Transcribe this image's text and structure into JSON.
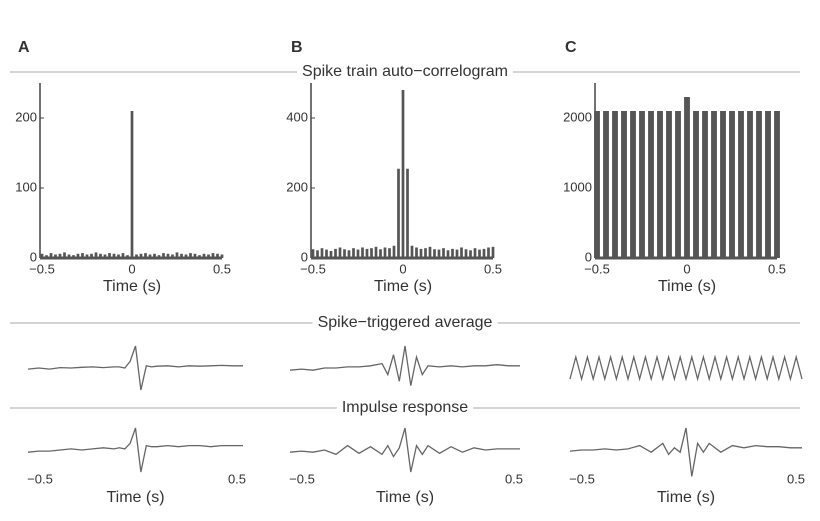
{
  "sections": [
    "Spike train auto−correlogram",
    "Spike−triggered average",
    "Impulse response"
  ],
  "chart_data": [
    {
      "type": "bar",
      "label": "A",
      "xlabel": "Time (s)",
      "color": "#555555",
      "x": [
        -0.5,
        -0.475,
        -0.45,
        -0.425,
        -0.4,
        -0.375,
        -0.35,
        -0.325,
        -0.3,
        -0.275,
        -0.25,
        -0.225,
        -0.2,
        -0.175,
        -0.15,
        -0.125,
        -0.1,
        -0.075,
        -0.05,
        -0.025,
        0,
        0.025,
        0.05,
        0.075,
        0.1,
        0.125,
        0.15,
        0.175,
        0.2,
        0.225,
        0.25,
        0.275,
        0.3,
        0.325,
        0.35,
        0.375,
        0.4,
        0.425,
        0.45,
        0.475,
        0.5
      ],
      "values": [
        6,
        4,
        7,
        5,
        6,
        8,
        5,
        4,
        6,
        7,
        5,
        6,
        8,
        6,
        5,
        7,
        6,
        5,
        7,
        4,
        210,
        5,
        6,
        7,
        5,
        6,
        4,
        7,
        6,
        5,
        8,
        6,
        5,
        7,
        6,
        4,
        6,
        5,
        7,
        6,
        5
      ],
      "xlim": [
        -0.5,
        0.5
      ],
      "xticks": [
        {
          "value": -0.5,
          "label": "−0.5"
        },
        0,
        0.5
      ],
      "ylim": [
        0,
        250
      ],
      "yticks": [
        0,
        100,
        200
      ]
    },
    {
      "type": "bar",
      "label": "B",
      "xlabel": "Time (s)",
      "color": "#555555",
      "x": [
        -0.5,
        -0.475,
        -0.45,
        -0.425,
        -0.4,
        -0.375,
        -0.35,
        -0.325,
        -0.3,
        -0.275,
        -0.25,
        -0.225,
        -0.2,
        -0.175,
        -0.15,
        -0.125,
        -0.1,
        -0.075,
        -0.05,
        -0.025,
        0,
        0.025,
        0.05,
        0.075,
        0.1,
        0.125,
        0.15,
        0.175,
        0.2,
        0.225,
        0.25,
        0.275,
        0.3,
        0.325,
        0.35,
        0.375,
        0.4,
        0.425,
        0.45,
        0.475,
        0.5
      ],
      "values": [
        25,
        22,
        28,
        24,
        20,
        26,
        30,
        25,
        22,
        28,
        24,
        30,
        26,
        28,
        32,
        25,
        30,
        28,
        35,
        255,
        480,
        255,
        35,
        30,
        26,
        28,
        32,
        25,
        24,
        28,
        22,
        26,
        24,
        30,
        25,
        22,
        28,
        24,
        26,
        30,
        32
      ],
      "xlim": [
        -0.5,
        0.5
      ],
      "xticks": [
        {
          "value": -0.5,
          "label": "−0.5"
        },
        0,
        0.5
      ],
      "ylim": [
        0,
        500
      ],
      "yticks": [
        0,
        200,
        400
      ]
    },
    {
      "type": "bar",
      "label": "C",
      "xlabel": "Time (s)",
      "color": "#555555",
      "x": [
        -0.5,
        -0.45,
        -0.4,
        -0.35,
        -0.3,
        -0.25,
        -0.2,
        -0.15,
        -0.1,
        -0.05,
        0,
        0.05,
        0.1,
        0.15,
        0.2,
        0.25,
        0.3,
        0.35,
        0.4,
        0.45,
        0.5
      ],
      "values": [
        2100,
        2100,
        2100,
        2100,
        2100,
        2100,
        2100,
        2100,
        2100,
        2100,
        2300,
        2100,
        2100,
        2100,
        2100,
        2100,
        2100,
        2100,
        2100,
        2100,
        2100
      ],
      "xlim": [
        -0.5,
        0.5
      ],
      "xticks": [
        {
          "value": -0.5,
          "label": "−0.5"
        },
        0,
        0.5
      ],
      "ylim": [
        0,
        2500
      ],
      "yticks": [
        0,
        1000,
        2000
      ]
    },
    {
      "type": "line",
      "color": "#666666",
      "x": [
        -0.5,
        -0.45,
        -0.4,
        -0.35,
        -0.3,
        -0.25,
        -0.2,
        -0.15,
        -0.1,
        -0.075,
        -0.05,
        -0.025,
        0,
        0.025,
        0.05,
        0.075,
        0.1,
        0.15,
        0.2,
        0.25,
        0.3,
        0.35,
        0.4,
        0.45,
        0.5
      ],
      "values": [
        -0.05,
        0,
        -0.05,
        0.02,
        0,
        0.03,
        0.05,
        0.02,
        0.05,
        0.05,
        0,
        0.3,
        1.0,
        -1.0,
        0.1,
        0.05,
        0.08,
        0.1,
        0.05,
        0.1,
        0.08,
        0.1,
        0.12,
        0.1,
        0.1
      ]
    },
    {
      "type": "line",
      "color": "#666666",
      "x": [
        -0.5,
        -0.45,
        -0.4,
        -0.35,
        -0.3,
        -0.25,
        -0.2,
        -0.15,
        -0.1,
        -0.075,
        -0.05,
        -0.025,
        0,
        0.025,
        0.05,
        0.075,
        0.1,
        0.15,
        0.2,
        0.25,
        0.3,
        0.35,
        0.4,
        0.45,
        0.5
      ],
      "values": [
        -0.1,
        -0.05,
        -0.1,
        0,
        0,
        0.05,
        0.05,
        0.1,
        0.2,
        -0.3,
        0.6,
        -0.6,
        1.0,
        -0.8,
        0.5,
        -0.3,
        0.1,
        0.05,
        0.1,
        0.05,
        0.1,
        0.1,
        0.15,
        0.1,
        0.1
      ]
    },
    {
      "type": "line",
      "color": "#666666",
      "x": [
        -0.5,
        -0.475,
        -0.45,
        -0.425,
        -0.4,
        -0.375,
        -0.35,
        -0.325,
        -0.3,
        -0.275,
        -0.25,
        -0.225,
        -0.2,
        -0.175,
        -0.15,
        -0.125,
        -0.1,
        -0.075,
        -0.05,
        -0.025,
        0,
        0.025,
        0.05,
        0.075,
        0.1,
        0.125,
        0.15,
        0.175,
        0.2,
        0.225,
        0.25,
        0.275,
        0.3,
        0.325,
        0.35,
        0.375,
        0.4,
        0.425,
        0.45,
        0.475,
        0.5
      ],
      "values": [
        -0.5,
        0.5,
        -0.5,
        0.5,
        -0.5,
        0.5,
        -0.5,
        0.5,
        -0.5,
        0.5,
        -0.5,
        0.5,
        -0.5,
        0.5,
        -0.5,
        0.5,
        -0.5,
        0.5,
        -0.5,
        0.5,
        -0.5,
        0.5,
        -0.5,
        0.5,
        -0.5,
        0.5,
        -0.5,
        0.5,
        -0.5,
        0.5,
        -0.5,
        0.5,
        -0.5,
        0.5,
        -0.5,
        0.5,
        -0.5,
        0.5,
        -0.5,
        0.5,
        -0.5
      ]
    },
    {
      "type": "line",
      "color": "#666666",
      "xlabel": "Time (s)",
      "x": [
        -0.5,
        -0.45,
        -0.4,
        -0.35,
        -0.3,
        -0.25,
        -0.2,
        -0.15,
        -0.1,
        -0.075,
        -0.05,
        -0.025,
        0,
        0.025,
        0.05,
        0.075,
        0.1,
        0.15,
        0.2,
        0.25,
        0.3,
        0.35,
        0.4,
        0.45,
        0.5
      ],
      "values": [
        -0.1,
        -0.05,
        -0.05,
        0,
        0.05,
        0,
        0.05,
        0.1,
        0.05,
        0.1,
        0.05,
        0.3,
        1.0,
        -1.0,
        0.2,
        0.15,
        0.15,
        0.2,
        0.15,
        0.2,
        0.2,
        0.15,
        0.2,
        0.2,
        0.2
      ],
      "xlim": [
        -0.5,
        0.5
      ],
      "xticks": [
        {
          "value": -0.5,
          "label": "−0.5"
        },
        0.5
      ]
    },
    {
      "type": "line",
      "color": "#666666",
      "xlabel": "Time (s)",
      "x": [
        -0.5,
        -0.45,
        -0.4,
        -0.35,
        -0.3,
        -0.25,
        -0.2,
        -0.15,
        -0.1,
        -0.075,
        -0.05,
        -0.025,
        0,
        0.025,
        0.05,
        0.075,
        0.1,
        0.15,
        0.2,
        0.25,
        0.3,
        0.35,
        0.4,
        0.45,
        0.5
      ],
      "values": [
        -0.1,
        -0.05,
        -0.1,
        0,
        -0.2,
        0.2,
        -0.15,
        0.15,
        -0.2,
        0.2,
        -0.3,
        0.1,
        1.0,
        -1.0,
        0.2,
        -0.2,
        0.2,
        -0.15,
        0.15,
        -0.1,
        0.1,
        0,
        0.05,
        0.05,
        0.05
      ],
      "xlim": [
        -0.5,
        0.5
      ],
      "xticks": [
        {
          "value": -0.5,
          "label": "−0.5"
        },
        0.5
      ]
    },
    {
      "type": "line",
      "color": "#666666",
      "xlabel": "Time (s)",
      "x": [
        -0.5,
        -0.45,
        -0.4,
        -0.35,
        -0.3,
        -0.25,
        -0.2,
        -0.15,
        -0.1,
        -0.075,
        -0.05,
        -0.025,
        0,
        0.025,
        0.05,
        0.075,
        0.1,
        0.15,
        0.2,
        0.25,
        0.3,
        0.35,
        0.4,
        0.45,
        0.5
      ],
      "values": [
        -0.05,
        0,
        0,
        0.05,
        0,
        0.05,
        0.2,
        -0.1,
        0.3,
        -0.2,
        0.1,
        -0.1,
        1.0,
        -1.2,
        0.3,
        -0.1,
        0.3,
        -0.1,
        0.2,
        0.1,
        0.2,
        0.15,
        0.15,
        0.1,
        0.1
      ],
      "xlim": [
        -0.5,
        0.5
      ],
      "xticks": [
        {
          "value": -0.5,
          "label": "−0.5"
        },
        0.5
      ]
    }
  ]
}
